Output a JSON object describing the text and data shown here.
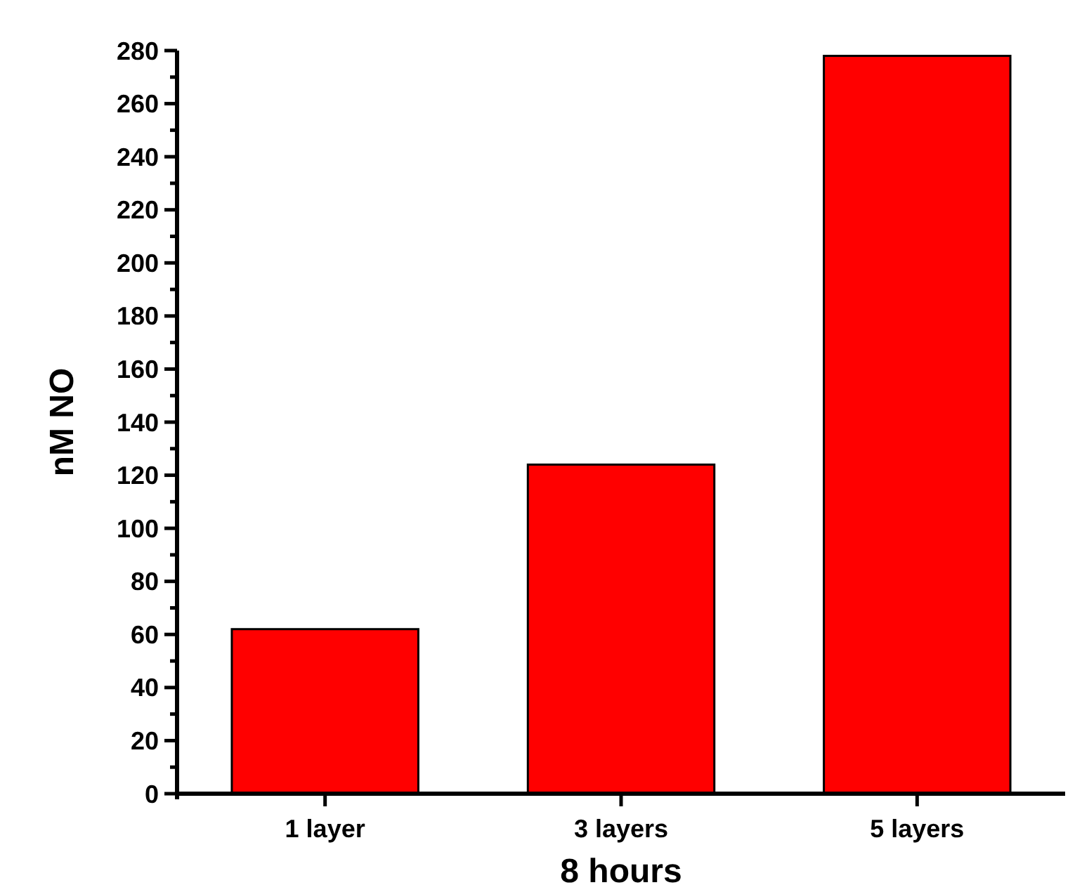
{
  "chart_data": {
    "type": "bar",
    "xlabel": "8 hours",
    "ylabel": "nM NO",
    "categories": [
      "1 layer",
      "3 layers",
      "5 layers"
    ],
    "values": [
      62,
      124,
      278
    ],
    "color": "#ff0000",
    "ylim": [
      0,
      280
    ],
    "yticks": [
      0,
      20,
      40,
      60,
      80,
      100,
      120,
      140,
      160,
      180,
      200,
      220,
      240,
      260,
      280
    ]
  }
}
